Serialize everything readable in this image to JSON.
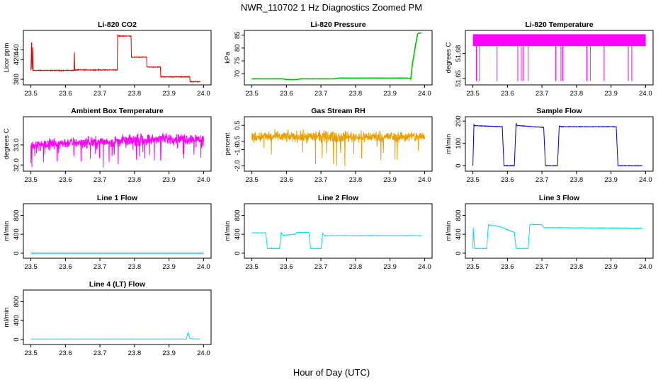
{
  "figure": {
    "title": "NWR_110702  1 Hz Diagnostics Zoomed PM",
    "xlabel": "Hour of Day (UTC)"
  },
  "chart_data": [
    {
      "id": "li820-co2",
      "type": "line",
      "title": "Li-820 CO2",
      "xlabel": "",
      "ylabel": "Licor ppm",
      "xlim": [
        23.5,
        24.0
      ],
      "ylim": [
        373,
        475
      ],
      "xticks": [
        23.5,
        23.6,
        23.7,
        23.8,
        23.9,
        24.0
      ],
      "xtick_labels": [
        "23.5",
        "23.6",
        "23.7",
        "23.8",
        "23.9",
        "24.0"
      ],
      "yticks": [
        380,
        420,
        440
      ],
      "ytick_labels": [
        "380",
        "420",
        "440"
      ],
      "color": "#e00000",
      "noise": 1.2,
      "x": [
        23.5,
        23.502,
        23.503,
        23.505,
        23.506,
        23.625,
        23.626,
        23.627,
        23.628,
        23.629,
        23.75,
        23.751,
        23.753,
        23.79,
        23.791,
        23.835,
        23.836,
        23.875,
        23.876,
        23.96,
        23.961,
        23.99
      ],
      "y": [
        398,
        455,
        400,
        445,
        398,
        398,
        435,
        400,
        397,
        399,
        399,
        470,
        468,
        468,
        425,
        425,
        405,
        405,
        385,
        385,
        375,
        375
      ]
    },
    {
      "id": "li820-pressure",
      "type": "line",
      "title": "Li-820 Pressure",
      "xlabel": "",
      "ylabel": "kPa",
      "xlim": [
        23.5,
        24.0
      ],
      "ylim": [
        66.5,
        86
      ],
      "xticks": [
        23.5,
        23.6,
        23.7,
        23.8,
        23.9,
        24.0
      ],
      "xtick_labels": [
        "23.5",
        "23.6",
        "23.7",
        "23.8",
        "23.9",
        "24.0"
      ],
      "yticks": [
        70,
        75,
        80,
        85
      ],
      "ytick_labels": [
        "70",
        "75",
        "80",
        "85"
      ],
      "color": "#00c000",
      "noise": 0.05,
      "x": [
        23.5,
        23.59,
        23.6,
        23.63,
        23.64,
        23.74,
        23.75,
        23.95,
        23.96,
        23.965,
        23.97,
        23.975,
        23.98,
        23.985,
        23.99
      ],
      "y": [
        68,
        68,
        67.7,
        67.7,
        68,
        68,
        68.3,
        68.3,
        68,
        74,
        78,
        82,
        85.5,
        85.8,
        85.8
      ]
    },
    {
      "id": "li820-temperature",
      "type": "line",
      "title": "Li-820 Temperature",
      "xlabel": "",
      "ylabel": "degrees C",
      "xlim": [
        23.5,
        24.0
      ],
      "ylim": [
        51.645,
        51.705
      ],
      "xticks": [
        23.5,
        23.6,
        23.7,
        23.8,
        23.9,
        24.0
      ],
      "xtick_labels": [
        "23.5",
        "23.6",
        "23.7",
        "23.8",
        "23.9",
        "24.0"
      ],
      "yticks": [
        51.65,
        51.68
      ],
      "ytick_labels": [
        "51.65",
        "51.68"
      ],
      "color": "#ff00ff",
      "noise": 0,
      "x": [
        23.5,
        24.0
      ],
      "y": [
        51.695,
        51.695
      ]
    },
    {
      "id": "ambient-box-temperature",
      "type": "line",
      "title": "Ambient Box Temperature",
      "xlabel": "",
      "ylabel": "degrees C",
      "xlim": [
        23.5,
        24.0
      ],
      "ylim": [
        31.8,
        34.3
      ],
      "xticks": [
        23.5,
        23.6,
        23.7,
        23.8,
        23.9,
        24.0
      ],
      "xtick_labels": [
        "23.5",
        "23.6",
        "23.7",
        "23.8",
        "23.9",
        "24.0"
      ],
      "yticks": [
        32.0,
        33.0
      ],
      "ytick_labels": [
        "32.0",
        "33.0"
      ],
      "color": "#ff00ff",
      "noise": 0.4,
      "x": [
        23.5,
        23.6,
        23.7,
        23.8,
        23.9,
        24.0
      ],
      "y": [
        33.0,
        33.1,
        33.15,
        33.25,
        33.3,
        33.3
      ]
    },
    {
      "id": "gas-stream-rh",
      "type": "line",
      "title": "Gas Stream RH",
      "xlabel": "",
      "ylabel": "percent",
      "xlim": [
        23.5,
        24.0
      ],
      "ylim": [
        -2.2,
        0.9
      ],
      "xticks": [
        23.5,
        23.6,
        23.7,
        23.8,
        23.9,
        24.0
      ],
      "xtick_labels": [
        "23.5",
        "23.6",
        "23.7",
        "23.8",
        "23.9",
        "24.0"
      ],
      "yticks": [
        -2.0,
        -1.0,
        -0.5,
        0.5
      ],
      "ytick_labels": [
        "-2.0",
        "-1.0",
        "-0.5",
        "0.5"
      ],
      "color": "#e8a000",
      "noise": 0.5,
      "x": [
        23.5,
        24.0
      ],
      "y": [
        -0.2,
        -0.2
      ]
    },
    {
      "id": "sample-flow",
      "type": "line",
      "title": "Sample Flow",
      "xlabel": "",
      "ylabel": "ml/min",
      "xlim": [
        23.5,
        24.0
      ],
      "ylim": [
        -15,
        210
      ],
      "xticks": [
        23.5,
        23.6,
        23.7,
        23.8,
        23.9,
        24.0
      ],
      "xtick_labels": [
        "23.5",
        "23.6",
        "23.7",
        "23.8",
        "23.9",
        "24.0"
      ],
      "yticks": [
        0,
        100,
        200
      ],
      "ytick_labels": [
        "0",
        "100",
        "200"
      ],
      "color": "#0000d0",
      "noise": 2,
      "x": [
        23.5,
        23.503,
        23.505,
        23.585,
        23.59,
        23.62,
        23.625,
        23.628,
        23.705,
        23.71,
        23.745,
        23.75,
        23.755,
        23.915,
        23.92,
        23.99
      ],
      "y": [
        0,
        185,
        180,
        175,
        0,
        0,
        190,
        180,
        172,
        0,
        0,
        178,
        175,
        175,
        0,
        0
      ]
    },
    {
      "id": "line-1-flow",
      "type": "line",
      "title": "Line 1 Flow",
      "xlabel": "",
      "ylabel": "ml/min",
      "xlim": [
        23.5,
        24.0
      ],
      "ylim": [
        -60,
        1000
      ],
      "xticks": [
        23.5,
        23.6,
        23.7,
        23.8,
        23.9,
        24.0
      ],
      "xtick_labels": [
        "23.5",
        "23.6",
        "23.7",
        "23.8",
        "23.9",
        "24.0"
      ],
      "yticks": [
        0,
        400,
        800
      ],
      "ytick_labels": [
        "0",
        "400",
        "800"
      ],
      "color": "#00e0e8",
      "noise": 0,
      "x": [
        23.5,
        24.0
      ],
      "y": [
        0,
        0
      ]
    },
    {
      "id": "line-2-flow",
      "type": "line",
      "title": "Line 2 Flow",
      "xlabel": "",
      "ylabel": "ml/min",
      "xlim": [
        23.5,
        24.0
      ],
      "ylim": [
        -60,
        1000
      ],
      "xticks": [
        23.5,
        23.6,
        23.7,
        23.8,
        23.9,
        24.0
      ],
      "xtick_labels": [
        "23.5",
        "23.6",
        "23.7",
        "23.8",
        "23.9",
        "24.0"
      ],
      "yticks": [
        0,
        400,
        800
      ],
      "ytick_labels": [
        "0",
        "400",
        "800"
      ],
      "color": "#00e0e8",
      "noise": 8,
      "x": [
        23.5,
        23.54,
        23.545,
        23.58,
        23.585,
        23.59,
        23.625,
        23.63,
        23.665,
        23.67,
        23.7,
        23.705,
        23.71,
        23.99
      ],
      "y": [
        430,
        430,
        100,
        100,
        440,
        380,
        400,
        440,
        440,
        100,
        100,
        420,
        370,
        370
      ]
    },
    {
      "id": "line-3-flow",
      "type": "line",
      "title": "Line 3 Flow",
      "xlabel": "",
      "ylabel": "ml/min",
      "xlim": [
        23.5,
        24.0
      ],
      "ylim": [
        -60,
        1000
      ],
      "xticks": [
        23.5,
        23.6,
        23.7,
        23.8,
        23.9,
        24.0
      ],
      "xtick_labels": [
        "23.5",
        "23.6",
        "23.7",
        "23.8",
        "23.9",
        "24.0"
      ],
      "yticks": [
        0,
        400,
        800
      ],
      "ytick_labels": [
        "0",
        "400",
        "800"
      ],
      "color": "#00e0e8",
      "noise": 8,
      "x": [
        23.5,
        23.501,
        23.505,
        23.54,
        23.545,
        23.58,
        23.585,
        23.62,
        23.625,
        23.66,
        23.665,
        23.7,
        23.705,
        23.99
      ],
      "y": [
        100,
        540,
        100,
        100,
        600,
        560,
        540,
        440,
        100,
        100,
        610,
        600,
        540,
        530
      ]
    },
    {
      "id": "line-4-lt-flow",
      "type": "line",
      "title": "Line 4 (LT) Flow",
      "xlabel": "",
      "ylabel": "ml/min",
      "xlim": [
        23.5,
        24.0
      ],
      "ylim": [
        -60,
        1000
      ],
      "xticks": [
        23.5,
        23.6,
        23.7,
        23.8,
        23.9,
        24.0
      ],
      "xtick_labels": [
        "23.5",
        "23.6",
        "23.7",
        "23.8",
        "23.9",
        "24.0"
      ],
      "yticks": [
        0,
        400,
        800
      ],
      "ytick_labels": [
        "0",
        "400",
        "800"
      ],
      "color": "#00e0e8",
      "noise": 2,
      "x": [
        23.5,
        23.95,
        23.955,
        23.96,
        23.965,
        23.99
      ],
      "y": [
        10,
        10,
        150,
        30,
        15,
        10
      ]
    }
  ]
}
